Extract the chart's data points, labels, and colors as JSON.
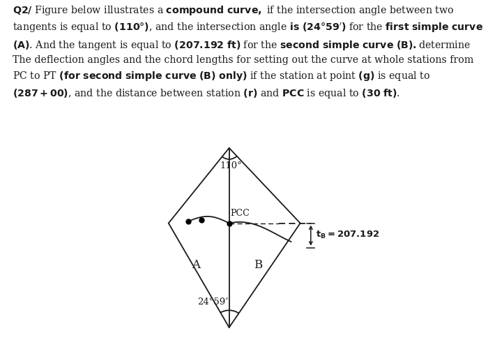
{
  "bg_color": "#ffffff",
  "line_color": "#1a1a1a",
  "text_color": "#1a1a1a",
  "label_110": "110°",
  "label_2459": "24°59’",
  "label_tB": "tB = 207.192",
  "label_A": "A",
  "label_B": "B",
  "label_PCC": "PCC"
}
